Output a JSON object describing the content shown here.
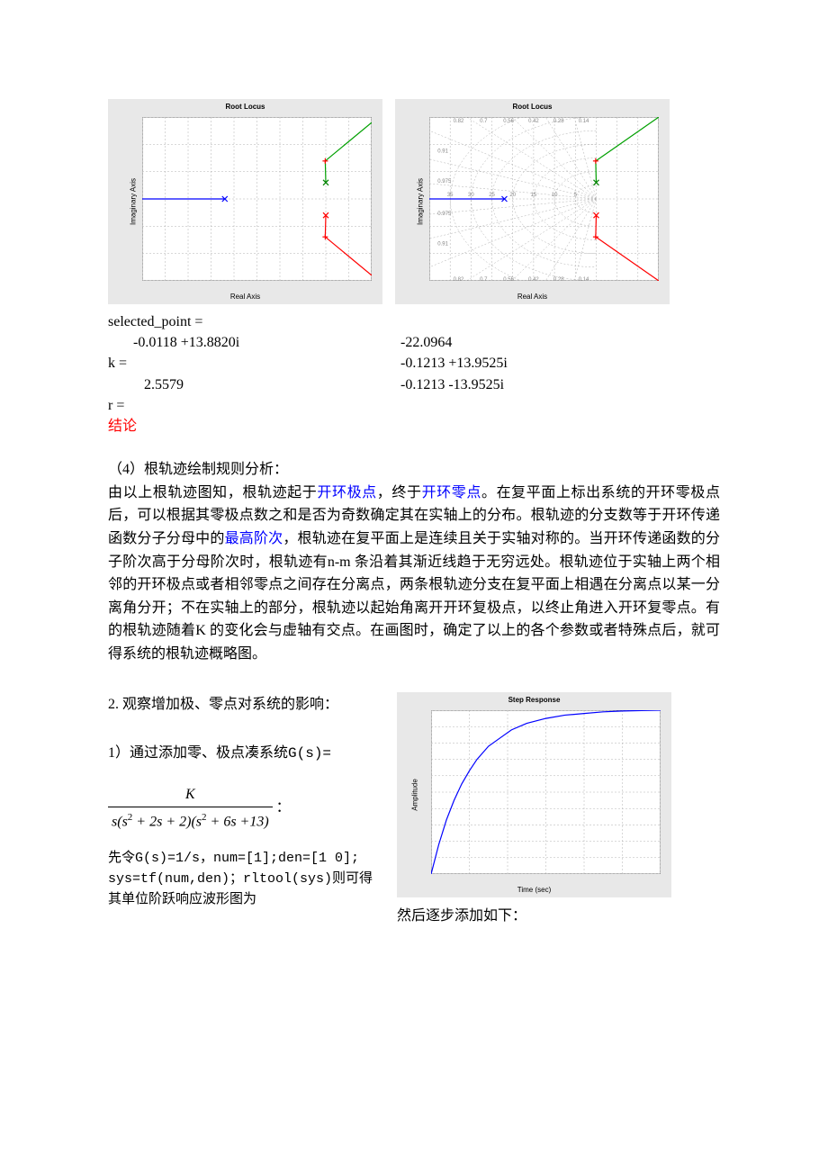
{
  "chart1": {
    "title": "Root Locus",
    "xlabel": "Real Axis",
    "ylabel": "Imaginary Axis",
    "xlim": [
      -40,
      10
    ],
    "ylim": [
      -30,
      30
    ],
    "xticks": [
      -40,
      -35,
      -30,
      -25,
      -20,
      -15,
      -10,
      -5,
      0,
      5,
      10
    ],
    "yticks": [
      -30,
      -20,
      -10,
      0,
      10,
      20,
      30
    ],
    "background_color": "#ffffff",
    "panel_color": "#e8e8e8",
    "grid_color": "#b0b0b0",
    "grid_dash": "2,2",
    "line_width": 1.2,
    "branches": [
      {
        "color": "#0000ff",
        "points": [
          [
            -40,
            0
          ],
          [
            -22,
            0
          ]
        ]
      },
      {
        "color": "#00a000",
        "points": [
          [
            -0.12,
            13.9
          ],
          [
            10,
            28
          ]
        ]
      },
      {
        "color": "#00a000",
        "points": [
          [
            0,
            6
          ],
          [
            -0.12,
            13.9
          ]
        ]
      },
      {
        "color": "#ff0000",
        "points": [
          [
            -0.12,
            -13.9
          ],
          [
            10,
            -28
          ]
        ]
      },
      {
        "color": "#ff0000",
        "points": [
          [
            0,
            -6
          ],
          [
            -0.12,
            -13.9
          ]
        ]
      }
    ],
    "markers": [
      {
        "x": 0,
        "y": 6,
        "style": "x",
        "color": "#008000"
      },
      {
        "x": 0,
        "y": -6,
        "style": "x",
        "color": "#ff0000"
      },
      {
        "x": -22,
        "y": 0,
        "style": "x",
        "color": "#0000ff"
      },
      {
        "x": -0.12,
        "y": 13.9,
        "style": "+",
        "color": "#ff0000"
      },
      {
        "x": -0.12,
        "y": -13.9,
        "style": "+",
        "color": "#ff0000"
      }
    ]
  },
  "chart2": {
    "title": "Root Locus",
    "xlabel": "Real Axis",
    "ylabel": "Imaginary Axis",
    "xlim": [
      -40,
      15
    ],
    "ylim": [
      -30,
      30
    ],
    "xticks": [
      -40,
      -35,
      -30,
      -25,
      -20,
      -15,
      -10,
      -5,
      0,
      5,
      10,
      15
    ],
    "yticks": [
      -30,
      -20,
      -10,
      0,
      10,
      20,
      30
    ],
    "background_color": "#ffffff",
    "panel_color": "#e8e8e8",
    "grid_color": "#b0b0b0",
    "grid_dash": "2,2",
    "line_width": 1.2,
    "zeta_labels": [
      "0.82",
      "0.7",
      "0.56",
      "0.42",
      "0.28",
      "0.14"
    ],
    "zeta_labels_top_y": 28,
    "zeta_labels_bot_y": -28,
    "wn_labels": [
      "35",
      "30",
      "25",
      "20",
      "15",
      "10",
      "5"
    ],
    "zeta_side_labels": [
      "0.91",
      "0.975",
      "0.975",
      "0.91"
    ],
    "branches": [
      {
        "color": "#0000ff",
        "points": [
          [
            -40,
            0
          ],
          [
            -22,
            0
          ]
        ]
      },
      {
        "color": "#00a000",
        "points": [
          [
            -0.12,
            13.9
          ],
          [
            15,
            30
          ]
        ]
      },
      {
        "color": "#00a000",
        "points": [
          [
            0,
            6
          ],
          [
            -0.12,
            13.9
          ]
        ]
      },
      {
        "color": "#ff0000",
        "points": [
          [
            -0.12,
            -13.9
          ],
          [
            15,
            -30
          ]
        ]
      },
      {
        "color": "#ff0000",
        "points": [
          [
            0,
            -6
          ],
          [
            -0.12,
            -13.9
          ]
        ]
      }
    ],
    "markers": [
      {
        "x": 0,
        "y": 6,
        "style": "x",
        "color": "#008000"
      },
      {
        "x": 0,
        "y": -6,
        "style": "x",
        "color": "#ff0000"
      },
      {
        "x": -22,
        "y": 0,
        "style": "x",
        "color": "#0000ff"
      },
      {
        "x": -0.12,
        "y": 13.9,
        "style": "+",
        "color": "#ff0000"
      },
      {
        "x": -0.12,
        "y": -13.9,
        "style": "+",
        "color": "#ff0000"
      }
    ]
  },
  "results": {
    "selected_point_label": "selected_point =",
    "selected_point_value": "-0.0118 +13.8820i",
    "k_label": "k =",
    "k_value": "2.5579",
    "r_label": "r =",
    "r_values": [
      "-22.0964",
      "-0.1213 +13.9525i",
      "-0.1213 -13.9525i"
    ],
    "conclusion_label": "结论"
  },
  "section4": {
    "heading": "（4）根轨迹绘制规则分析：",
    "para_parts": [
      {
        "t": "由以上根轨迹图知，根轨迹起于"
      },
      {
        "t": "开环极点",
        "c": "blue"
      },
      {
        "t": "，终于"
      },
      {
        "t": "开环零点",
        "c": "blue"
      },
      {
        "t": "。在复平面上标出系统的开环零极点后，可以根据其零极点数之和是否为奇数确定其在实轴上的分布。根轨迹的分支数等于开环传递函数分子分母中的"
      },
      {
        "t": "最高阶次",
        "c": "blue"
      },
      {
        "t": "，根轨迹在复平面上是连续且关于实轴对称的。当开环传递函数的分子阶次高于分母阶次时，根轨迹有n-m 条沿着其渐近线趋于无穷远处。根轨迹位于实轴上两个相邻的开环极点或者相邻零点之间存在分离点，两条根轨迹分支在复平面上相遇在分离点以某一分离角分开；不在实轴上的部分，根轨迹以起始角离开开环复极点，以终止角进入开环复零点。有的根轨迹随着K 的变化会与虚轴有交点。在画图时，确定了以上的各个参数或者特殊点后，就可得系统的根轨迹概略图。"
      }
    ]
  },
  "section2": {
    "heading": "2. 观察增加极、零点对系统的影响：",
    "sub1_prefix": "1）通过添加零、极点凑系统",
    "gs": "G(s)=",
    "frac_num": "K",
    "frac_den": "s(s² + 2s + 2)(s² + 6s + 13)",
    "colon": "：",
    "line_a": "先令G(s)=1/s，num=[1];den=[1 0];",
    "line_b": "sys=tf(num,den)；rltool(sys)则可得其单位阶跃响应波形图为",
    "caption": "然后逐步添加如下："
  },
  "step_chart": {
    "title": "Step Response",
    "xlabel": "Time (sec)",
    "ylabel": "Amplitude",
    "xlim": [
      0,
      6
    ],
    "ylim": [
      0,
      1
    ],
    "xticks": [
      0,
      1,
      2,
      3,
      4,
      5,
      6
    ],
    "yticks": [
      0,
      0.1,
      0.2,
      0.3,
      0.4,
      0.5,
      0.6,
      0.7,
      0.8,
      0.9,
      1
    ],
    "background_color": "#ffffff",
    "panel_color": "#e8e8e8",
    "grid_color": "#b0b0b0",
    "grid_dash": "2,2",
    "line_color": "#0000ff",
    "line_width": 1.2,
    "curve": [
      [
        0,
        0
      ],
      [
        0.2,
        0.18
      ],
      [
        0.4,
        0.33
      ],
      [
        0.6,
        0.45
      ],
      [
        0.8,
        0.55
      ],
      [
        1.0,
        0.63
      ],
      [
        1.2,
        0.7
      ],
      [
        1.5,
        0.78
      ],
      [
        1.8,
        0.83
      ],
      [
        2.1,
        0.88
      ],
      [
        2.5,
        0.92
      ],
      [
        3.0,
        0.95
      ],
      [
        3.5,
        0.97
      ],
      [
        4.0,
        0.98
      ],
      [
        4.5,
        0.99
      ],
      [
        5.0,
        0.995
      ],
      [
        5.5,
        0.998
      ],
      [
        6.0,
        1.0
      ]
    ]
  }
}
